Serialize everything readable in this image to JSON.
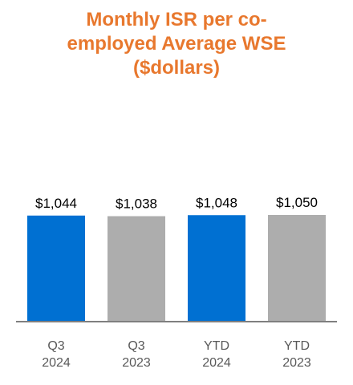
{
  "chart_data": {
    "type": "bar",
    "title_lines": [
      "Monthly ISR per co-",
      "employed Average WSE",
      "($dollars)"
    ],
    "categories": [
      {
        "line1": "Q3",
        "line2": "2024"
      },
      {
        "line1": "Q3",
        "line2": "2023"
      },
      {
        "line1": "YTD",
        "line2": "2024"
      },
      {
        "line1": "YTD",
        "line2": "2023"
      }
    ],
    "values": [
      1044,
      1038,
      1048,
      1050
    ],
    "value_labels": [
      "$1,044",
      "$1,038",
      "$1,048",
      "$1,050"
    ],
    "bar_colors": [
      "#0070d2",
      "#adadad",
      "#0070d2",
      "#adadad"
    ],
    "title_color": "#e8782e",
    "ylim": [
      0,
      1050
    ],
    "grid": false,
    "legend": "none"
  }
}
